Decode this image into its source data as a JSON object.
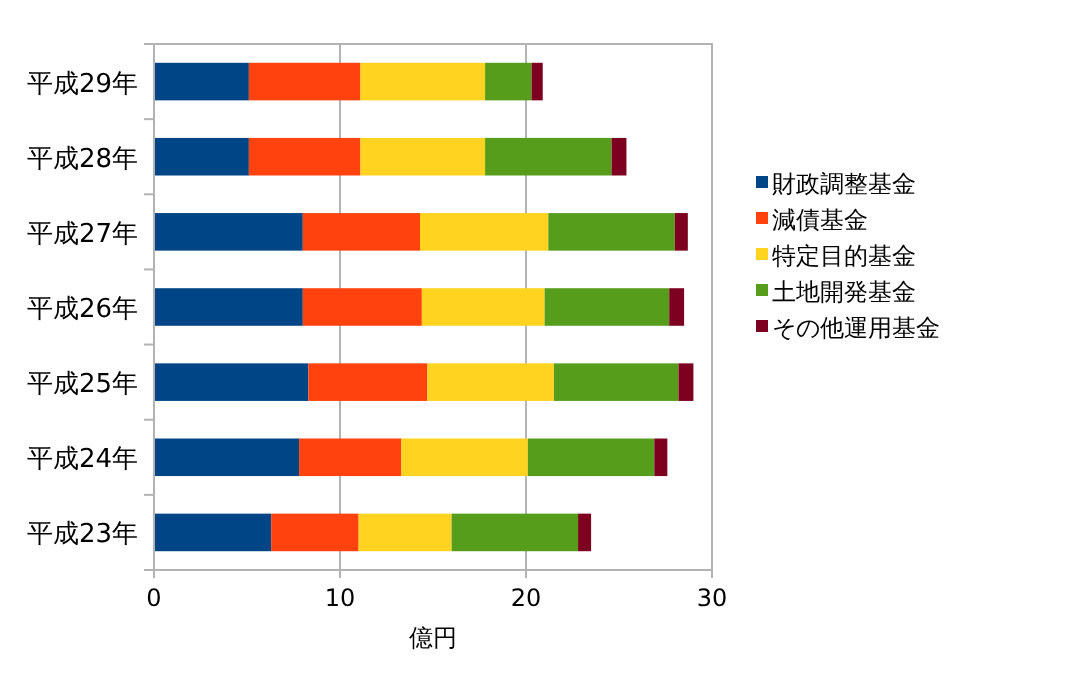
{
  "chart_data": {
    "type": "bar",
    "orientation": "horizontal",
    "stacked": true,
    "xlabel": "億円",
    "categories": [
      "平成29年",
      "平成28年",
      "平成27年",
      "平成26年",
      "平成25年",
      "平成24年",
      "平成23年"
    ],
    "series": [
      {
        "name": "財政調整基金",
        "color": "#004586",
        "values": [
          5.1,
          5.1,
          8.0,
          8.0,
          8.3,
          7.8,
          6.3
        ]
      },
      {
        "name": "減債基金",
        "color": "#ff420e",
        "values": [
          6.0,
          6.0,
          6.3,
          6.4,
          6.4,
          5.5,
          4.7
        ]
      },
      {
        "name": "特定目的基金",
        "color": "#ffd320",
        "values": [
          6.7,
          6.7,
          6.9,
          6.6,
          6.8,
          6.8,
          5.0
        ]
      },
      {
        "name": "土地開発基金",
        "color": "#579d1c",
        "values": [
          2.5,
          6.8,
          6.8,
          6.7,
          6.7,
          6.8,
          6.8
        ]
      },
      {
        "name": "その他運用基金",
        "color": "#7e0021",
        "values": [
          0.6,
          0.8,
          0.7,
          0.8,
          0.8,
          0.7,
          0.7
        ]
      }
    ],
    "xlim": [
      0,
      30
    ],
    "xticks": [
      0,
      10,
      20,
      30
    ],
    "grid": "x",
    "legend": "right"
  }
}
